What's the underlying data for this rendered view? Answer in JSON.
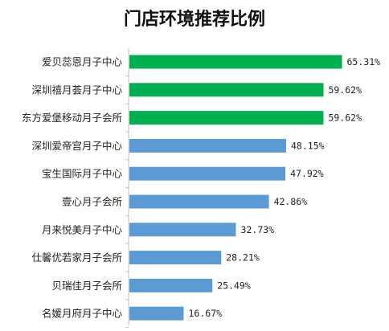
{
  "chart_data": {
    "type": "bar",
    "orientation": "horizontal",
    "title": "门店环境推荐比例",
    "categories": [
      "爱贝蕊恩月子中心",
      "深圳禧月荟月子中心",
      "东方爱堡移动月子会所",
      "深圳爱帝宫月子中心",
      "宝生国际月子中心",
      "壹心月子会所",
      "月来悦美月子中心",
      "仕馨优若家月子会所",
      "贝瑞佳月子会所",
      "名媛月府月子中心"
    ],
    "values": [
      65.31,
      59.62,
      59.62,
      48.15,
      47.92,
      42.86,
      32.73,
      28.21,
      25.49,
      16.67
    ],
    "value_labels": [
      "65.31%",
      "59.62%",
      "59.62%",
      "48.15%",
      "47.92%",
      "42.86%",
      "32.73%",
      "28.21%",
      "25.49%",
      "16.67%"
    ],
    "bar_colors": [
      "#00b050",
      "#00b050",
      "#00b050",
      "#5b9bd5",
      "#5b9bd5",
      "#5b9bd5",
      "#5b9bd5",
      "#5b9bd5",
      "#5b9bd5",
      "#5b9bd5"
    ],
    "xlim": [
      0,
      80
    ],
    "grid": false,
    "legend": "none"
  }
}
